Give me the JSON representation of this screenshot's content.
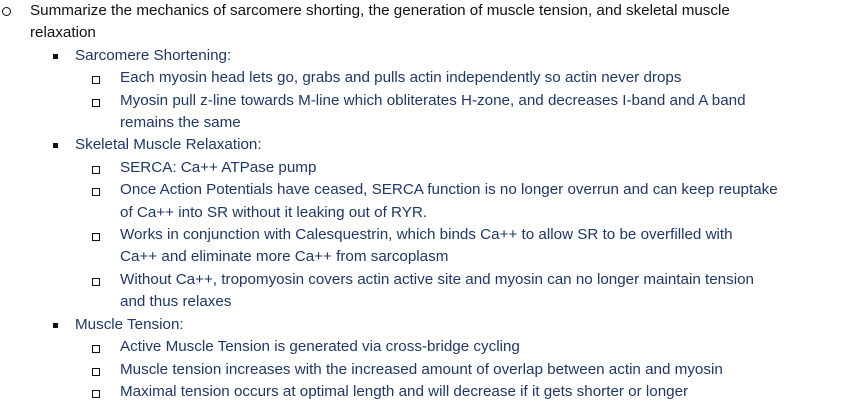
{
  "question": {
    "line1": "Summarize the mechanics of sarcomere shorting, the generation of muscle tension, and skeletal muscle",
    "line2": "relaxation"
  },
  "sections": [
    {
      "heading": "Sarcomere Shortening:",
      "items": [
        [
          "Each myosin head lets go, grabs and pulls actin independently so actin never drops"
        ],
        [
          "Myosin pull z-line towards M-line which obliterates H-zone, and decreases I-band and A band",
          "remains the same"
        ]
      ]
    },
    {
      "heading": "Skeletal Muscle Relaxation:",
      "items": [
        [
          "SERCA: Ca++ ATPase pump"
        ],
        [
          "Once Action Potentials have ceased, SERCA function is no longer overrun and can keep reuptake",
          "of Ca++ into SR without it leaking out of RYR."
        ],
        [
          "Works in conjunction with Calesquestrin, which binds Ca++ to allow SR to be overfilled with",
          "Ca++ and eliminate more Ca++ from sarcoplasm"
        ],
        [
          "Without Ca++, tropomyosin covers actin active site and myosin can no longer maintain tension",
          "and thus relaxes"
        ]
      ]
    },
    {
      "heading": "Muscle Tension:",
      "items": [
        [
          "Active Muscle Tension is generated via cross-bridge cycling"
        ],
        [
          "Muscle tension increases with the increased amount of overlap between actin and myosin"
        ],
        [
          "Maximal tension occurs at optimal length and will decrease if it gets shorter or longer"
        ]
      ]
    }
  ]
}
